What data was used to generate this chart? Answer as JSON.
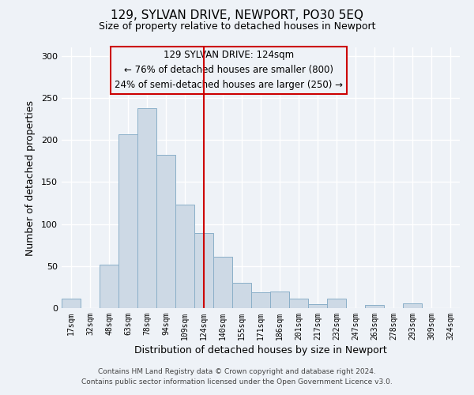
{
  "title": "129, SYLVAN DRIVE, NEWPORT, PO30 5EQ",
  "subtitle": "Size of property relative to detached houses in Newport",
  "xlabel": "Distribution of detached houses by size in Newport",
  "ylabel": "Number of detached properties",
  "bar_color": "#cdd9e5",
  "bar_edge_color": "#8aafc8",
  "categories": [
    "17sqm",
    "32sqm",
    "48sqm",
    "63sqm",
    "78sqm",
    "94sqm",
    "109sqm",
    "124sqm",
    "140sqm",
    "155sqm",
    "171sqm",
    "186sqm",
    "201sqm",
    "217sqm",
    "232sqm",
    "247sqm",
    "263sqm",
    "278sqm",
    "293sqm",
    "309sqm",
    "324sqm"
  ],
  "values": [
    11,
    0,
    52,
    207,
    238,
    182,
    123,
    89,
    61,
    30,
    19,
    20,
    11,
    5,
    11,
    0,
    4,
    0,
    6,
    0,
    0
  ],
  "vline_x_idx": 7,
  "vline_color": "#cc0000",
  "annotation_title": "129 SYLVAN DRIVE: 124sqm",
  "annotation_line1": "← 76% of detached houses are smaller (800)",
  "annotation_line2": "24% of semi-detached houses are larger (250) →",
  "footer1": "Contains HM Land Registry data © Crown copyright and database right 2024.",
  "footer2": "Contains public sector information licensed under the Open Government Licence v3.0.",
  "ylim": [
    0,
    310
  ],
  "yticks": [
    0,
    50,
    100,
    150,
    200,
    250,
    300
  ],
  "background_color": "#eef2f7",
  "grid_color": "#ffffff",
  "figsize": [
    6.0,
    5.0
  ],
  "dpi": 100
}
